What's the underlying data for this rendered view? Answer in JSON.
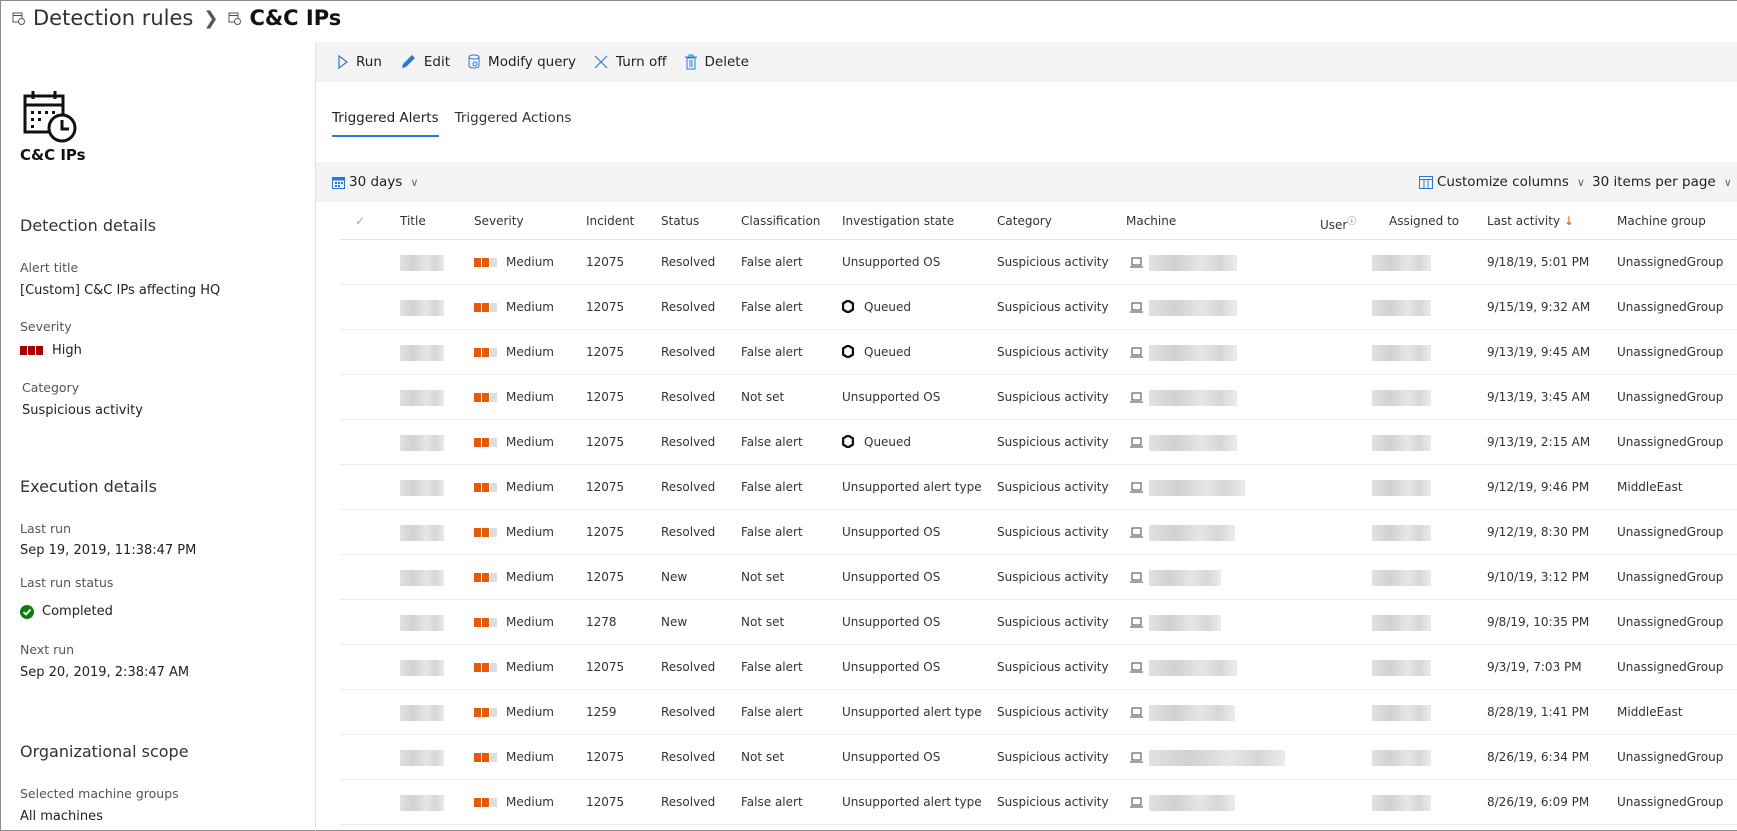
{
  "breadcrumb": {
    "parent": "Detection rules",
    "current": "C&C IPs"
  },
  "left": {
    "rule_name": "C&C IPs",
    "detection_heading": "Detection details",
    "alert_title_label": "Alert title",
    "alert_title": "[Custom] C&C IPs affecting HQ",
    "severity_label": "Severity",
    "severity": "High",
    "category_label": "Category",
    "category": "Suspicious activity",
    "execution_heading": "Execution details",
    "last_run_label": "Last run",
    "last_run": "Sep 19, 2019, 11:38:47 PM",
    "last_run_status_label": "Last run status",
    "last_run_status": "Completed",
    "next_run_label": "Next run",
    "next_run": "Sep 20, 2019, 2:38:47 AM",
    "scope_heading": "Organizational scope",
    "machine_groups_label": "Selected machine groups",
    "machine_groups": "All machines"
  },
  "toolbar": {
    "run": "Run",
    "edit": "Edit",
    "modify": "Modify query",
    "turn_off": "Turn off",
    "delete": "Delete"
  },
  "tabs": [
    {
      "label": "Triggered Alerts",
      "active": true
    },
    {
      "label": "Triggered Actions",
      "active": false
    }
  ],
  "filter": {
    "range": "30 days",
    "customize": "Customize columns",
    "per_page": "30 items per page"
  },
  "colors": {
    "high": "#a80000",
    "medium": "#e25b0a",
    "accent": "#2b78d4",
    "completed": "#107c10"
  },
  "columns": [
    "Title",
    "Severity",
    "Incident",
    "Status",
    "Classification",
    "Investigation state",
    "Category",
    "Machine",
    "User",
    "Assigned to",
    "Last activity",
    "Machine group"
  ],
  "rows": [
    {
      "severity": "Medium",
      "incident": "12075",
      "status": "Resolved",
      "classification": "False alert",
      "investigation": "Unsupported OS",
      "queued": false,
      "category": "Suspicious activity",
      "last": "9/18/19, 5:01 PM",
      "group": "UnassignedGroup"
    },
    {
      "severity": "Medium",
      "incident": "12075",
      "status": "Resolved",
      "classification": "False alert",
      "investigation": "Queued",
      "queued": true,
      "category": "Suspicious activity",
      "last": "9/15/19, 9:32 AM",
      "group": "UnassignedGroup"
    },
    {
      "severity": "Medium",
      "incident": "12075",
      "status": "Resolved",
      "classification": "False alert",
      "investigation": "Queued",
      "queued": true,
      "category": "Suspicious activity",
      "last": "9/13/19, 9:45 AM",
      "group": "UnassignedGroup"
    },
    {
      "severity": "Medium",
      "incident": "12075",
      "status": "Resolved",
      "classification": "Not set",
      "investigation": "Unsupported OS",
      "queued": false,
      "category": "Suspicious activity",
      "last": "9/13/19, 3:45 AM",
      "group": "UnassignedGroup"
    },
    {
      "severity": "Medium",
      "incident": "12075",
      "status": "Resolved",
      "classification": "False alert",
      "investigation": "Queued",
      "queued": true,
      "category": "Suspicious activity",
      "last": "9/13/19, 2:15 AM",
      "group": "UnassignedGroup"
    },
    {
      "severity": "Medium",
      "incident": "12075",
      "status": "Resolved",
      "classification": "False alert",
      "investigation": "Unsupported alert type",
      "queued": false,
      "category": "Suspicious activity",
      "last": "9/12/19, 9:46 PM",
      "group": "MiddleEast"
    },
    {
      "severity": "Medium",
      "incident": "12075",
      "status": "Resolved",
      "classification": "False alert",
      "investigation": "Unsupported OS",
      "queued": false,
      "category": "Suspicious activity",
      "last": "9/12/19, 8:30 PM",
      "group": "UnassignedGroup"
    },
    {
      "severity": "Medium",
      "incident": "12075",
      "status": "New",
      "classification": "Not set",
      "investigation": "Unsupported OS",
      "queued": false,
      "category": "Suspicious activity",
      "last": "9/10/19, 3:12 PM",
      "group": "UnassignedGroup"
    },
    {
      "severity": "Medium",
      "incident": "1278",
      "status": "New",
      "classification": "Not set",
      "investigation": "Unsupported OS",
      "queued": false,
      "category": "Suspicious activity",
      "last": "9/8/19, 10:35 PM",
      "group": "UnassignedGroup"
    },
    {
      "severity": "Medium",
      "incident": "12075",
      "status": "Resolved",
      "classification": "False alert",
      "investigation": "Unsupported OS",
      "queued": false,
      "category": "Suspicious activity",
      "last": "9/3/19, 7:03 PM",
      "group": "UnassignedGroup"
    },
    {
      "severity": "Medium",
      "incident": "1259",
      "status": "Resolved",
      "classification": "False alert",
      "investigation": "Unsupported alert type",
      "queued": false,
      "category": "Suspicious activity",
      "last": "8/28/19, 1:41 PM",
      "group": "MiddleEast"
    },
    {
      "severity": "Medium",
      "incident": "12075",
      "status": "Resolved",
      "classification": "Not set",
      "investigation": "Unsupported OS",
      "queued": false,
      "category": "Suspicious activity",
      "last": "8/26/19, 6:34 PM",
      "group": "UnassignedGroup"
    },
    {
      "severity": "Medium",
      "incident": "12075",
      "status": "Resolved",
      "classification": "False alert",
      "investigation": "Unsupported alert type",
      "queued": false,
      "category": "Suspicious activity",
      "last": "8/26/19, 6:09 PM",
      "group": "UnassignedGroup"
    }
  ]
}
